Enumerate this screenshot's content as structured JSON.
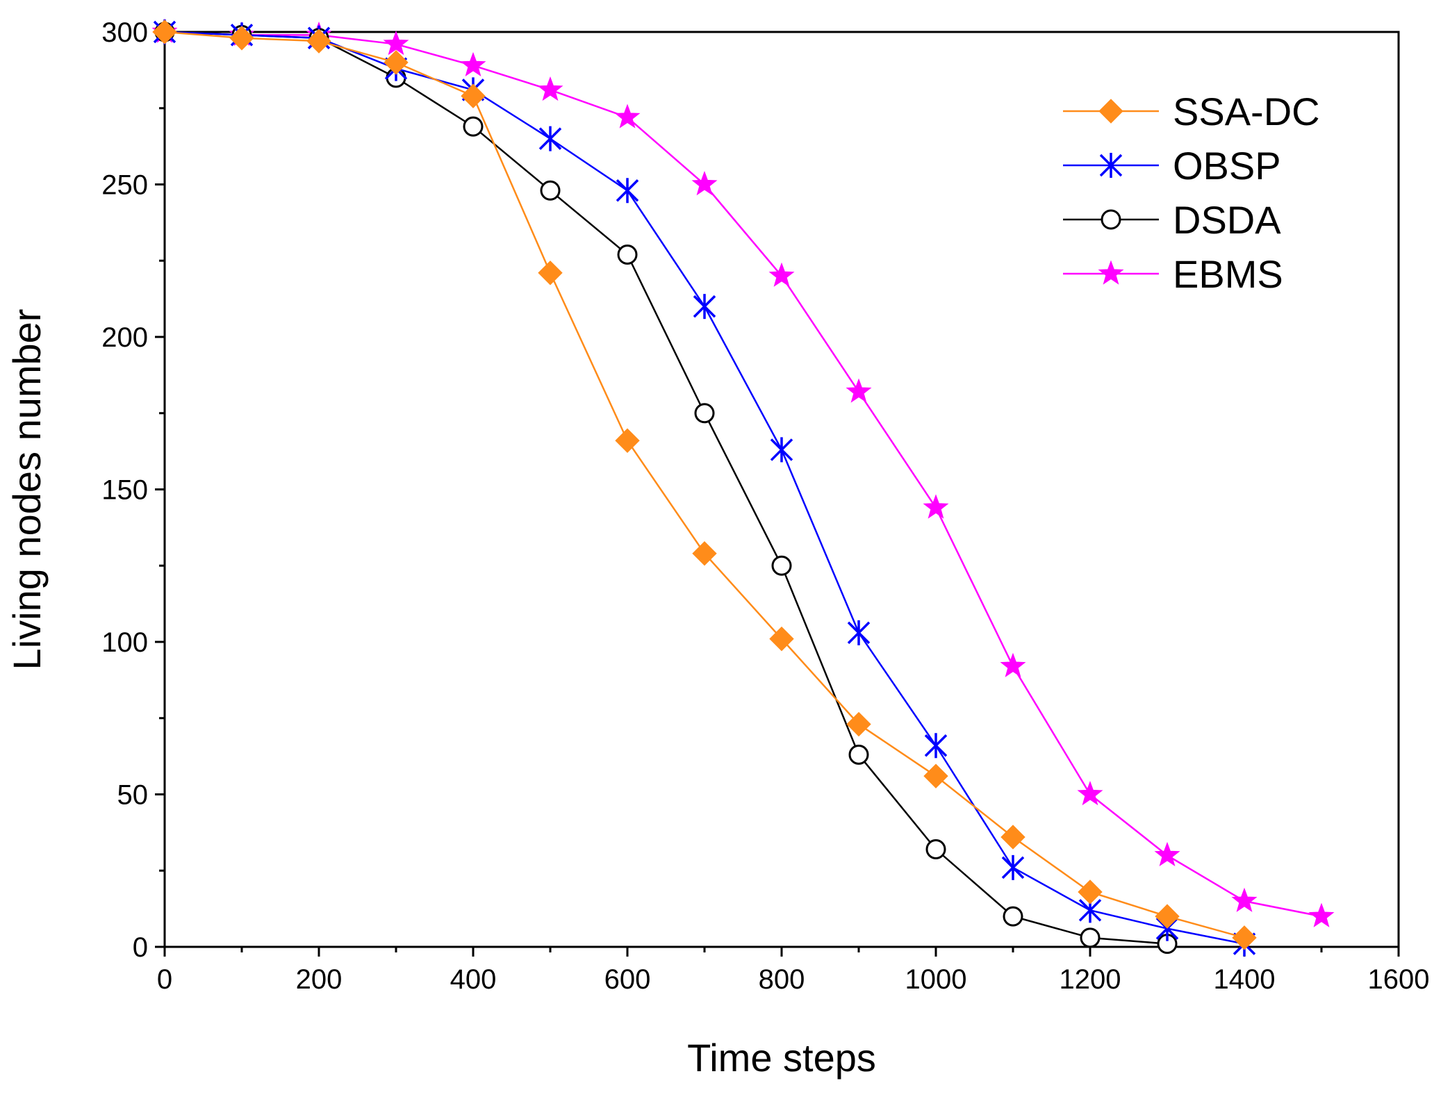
{
  "chart_data": {
    "type": "line",
    "title": "",
    "xlabel": "Time steps",
    "ylabel": "Living nodes number",
    "xlim": [
      0,
      1600
    ],
    "ylim": [
      0,
      300
    ],
    "xticks": [
      0,
      200,
      400,
      600,
      800,
      1000,
      1200,
      1400,
      1600
    ],
    "yticks": [
      0,
      50,
      100,
      150,
      200,
      250,
      300
    ],
    "xtick_labels": [
      "0",
      "200",
      "400",
      "600",
      "800",
      "1000",
      "1200",
      "1400",
      "1600"
    ],
    "ytick_labels": [
      "0",
      "50",
      "100",
      "150",
      "200",
      "250",
      "300"
    ],
    "grid": false,
    "legend_position": "top-right",
    "series": [
      {
        "name": "SSA-DC",
        "color": "#FF8C1A",
        "marker": "diamond",
        "x": [
          0,
          100,
          200,
          300,
          400,
          500,
          600,
          700,
          800,
          900,
          1000,
          1100,
          1200,
          1300,
          1400
        ],
        "y": [
          300,
          298,
          297,
          290,
          279,
          221,
          166,
          129,
          101,
          73,
          56,
          36,
          18,
          10,
          3
        ]
      },
      {
        "name": "OBSP",
        "color": "#0000FF",
        "marker": "asterisk",
        "x": [
          0,
          100,
          200,
          300,
          400,
          500,
          600,
          700,
          800,
          900,
          1000,
          1100,
          1200,
          1300,
          1400
        ],
        "y": [
          300,
          299,
          298,
          288,
          281,
          265,
          248,
          210,
          163,
          103,
          66,
          26,
          12,
          6,
          1
        ]
      },
      {
        "name": "DSDA",
        "color": "#000000",
        "marker": "circle",
        "x": [
          0,
          100,
          200,
          300,
          400,
          500,
          600,
          700,
          800,
          900,
          1000,
          1100,
          1200,
          1300
        ],
        "y": [
          300,
          299,
          298,
          285,
          269,
          248,
          227,
          175,
          125,
          63,
          32,
          10,
          3,
          1
        ]
      },
      {
        "name": "EBMS",
        "color": "#FF00FF",
        "marker": "star",
        "x": [
          0,
          100,
          200,
          300,
          400,
          500,
          600,
          700,
          800,
          900,
          1000,
          1100,
          1200,
          1300,
          1400,
          1500
        ],
        "y": [
          300,
          299,
          299,
          296,
          289,
          281,
          272,
          250,
          220,
          182,
          144,
          92,
          50,
          30,
          15,
          10
        ]
      }
    ]
  }
}
